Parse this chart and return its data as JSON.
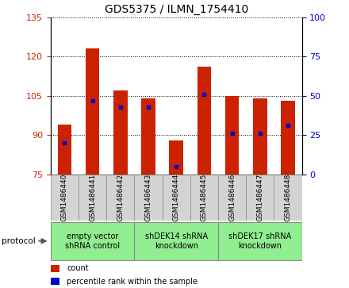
{
  "title": "GDS5375 / ILMN_1754410",
  "categories": [
    "GSM1486440",
    "GSM1486441",
    "GSM1486442",
    "GSM1486443",
    "GSM1486444",
    "GSM1486445",
    "GSM1486446",
    "GSM1486447",
    "GSM1486448"
  ],
  "count_values": [
    94,
    123,
    107,
    104,
    88,
    116,
    105,
    104,
    103
  ],
  "percentile_values": [
    20,
    47,
    43,
    43,
    5,
    51,
    26,
    26,
    31
  ],
  "ylim_left": [
    75,
    135
  ],
  "ylim_right": [
    0,
    100
  ],
  "yticks_left": [
    75,
    90,
    105,
    120,
    135
  ],
  "yticks_right": [
    0,
    25,
    50,
    75,
    100
  ],
  "left_color": "#CC2200",
  "right_color": "#0000CC",
  "bar_width": 0.5,
  "groups": [
    {
      "label": "empty vector\nshRNA control",
      "start": 0,
      "end": 3,
      "color": "#90EE90"
    },
    {
      "label": "shDEK14 shRNA\nknockdown",
      "start": 3,
      "end": 6,
      "color": "#90EE90"
    },
    {
      "label": "shDEK17 shRNA\nknockdown",
      "start": 6,
      "end": 9,
      "color": "#90EE90"
    }
  ],
  "legend_count_color": "#CC2200",
  "legend_pct_color": "#0000CC",
  "protocol_label": "protocol",
  "tick_label_bg": "#D3D3D3",
  "tick_label_fontsize": 6.5,
  "title_fontsize": 10,
  "axis_fontsize": 8,
  "legend_fontsize": 7,
  "proto_fontsize": 7
}
